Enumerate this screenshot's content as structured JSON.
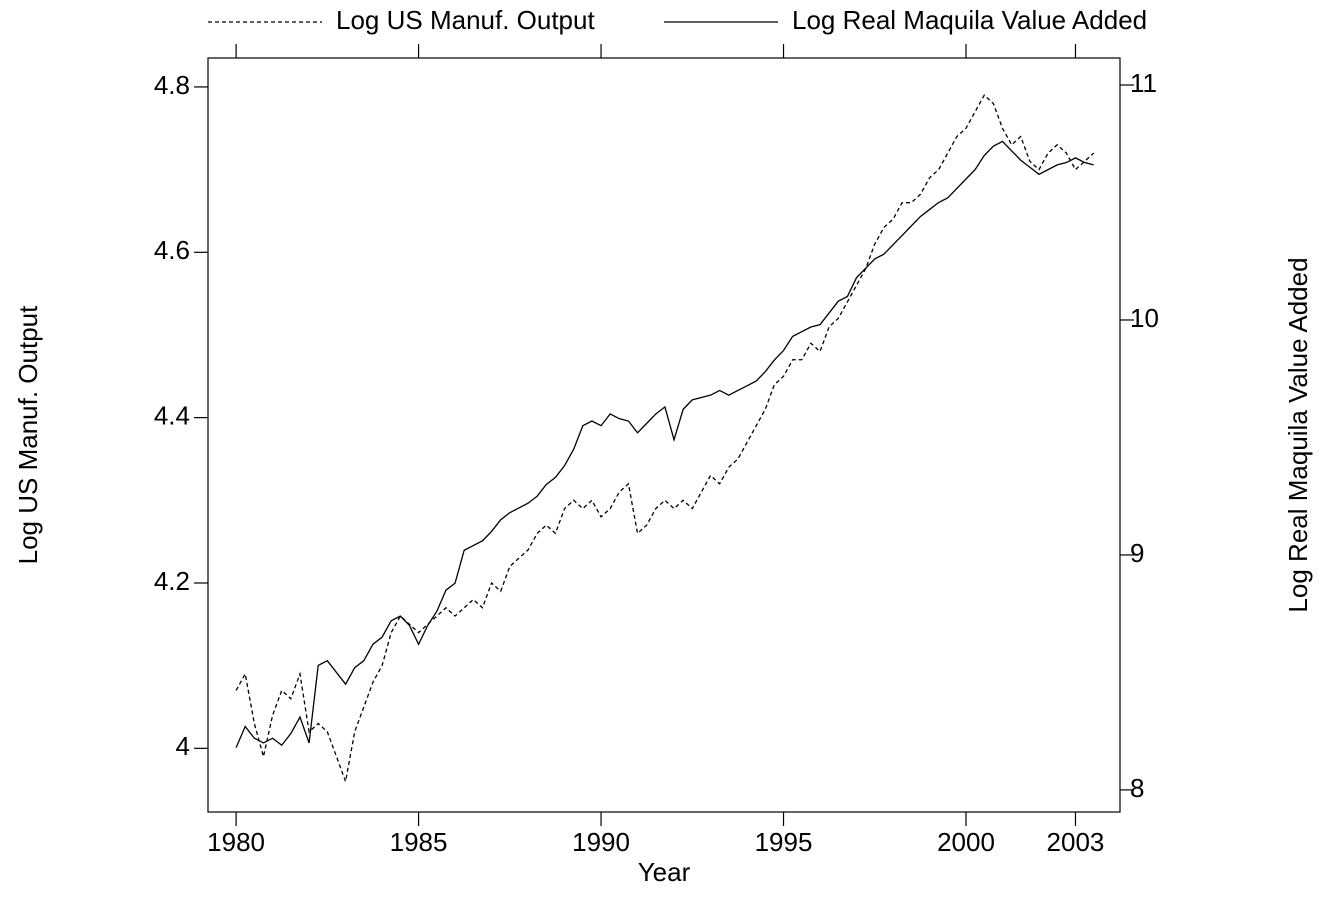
{
  "chart_data": {
    "type": "line",
    "x_label": "Year",
    "y_label": "Log US Manuf. Output",
    "y2_label": "Log Real Maquila Value Added",
    "x": [
      1980,
      1980.25,
      1980.5,
      1980.75,
      1981,
      1981.25,
      1981.5,
      1981.75,
      1982,
      1982.25,
      1982.5,
      1982.75,
      1983,
      1983.25,
      1983.5,
      1983.75,
      1984,
      1984.25,
      1984.5,
      1984.75,
      1985,
      1985.25,
      1985.5,
      1985.75,
      1986,
      1986.25,
      1986.5,
      1986.75,
      1987,
      1987.25,
      1987.5,
      1987.75,
      1988,
      1988.25,
      1988.5,
      1988.75,
      1989,
      1989.25,
      1989.5,
      1989.75,
      1990,
      1990.25,
      1990.5,
      1990.75,
      1991,
      1991.25,
      1991.5,
      1991.75,
      1992,
      1992.25,
      1992.5,
      1992.75,
      1993,
      1993.25,
      1993.5,
      1993.75,
      1994,
      1994.25,
      1994.5,
      1994.75,
      1995,
      1995.25,
      1995.5,
      1995.75,
      1996,
      1996.25,
      1996.5,
      1996.75,
      1997,
      1997.25,
      1997.5,
      1997.75,
      1998,
      1998.25,
      1998.5,
      1998.75,
      1999,
      1999.25,
      1999.5,
      1999.75,
      2000,
      2000.25,
      2000.5,
      2000.75,
      2001,
      2001.25,
      2001.5,
      2001.75,
      2002,
      2002.25,
      2002.5,
      2002.75,
      2003,
      2003.25,
      2003.5
    ],
    "series": [
      {
        "name": "Log US Manuf. Output",
        "color": "#000000",
        "line_style": "dashed",
        "values": [
          4.07,
          4.09,
          4.03,
          3.99,
          4.04,
          4.07,
          4.06,
          4.09,
          4.02,
          4.03,
          4.02,
          3.99,
          3.96,
          4.02,
          4.05,
          4.08,
          4.1,
          4.14,
          4.16,
          4.15,
          4.14,
          4.15,
          4.16,
          4.17,
          4.16,
          4.17,
          4.18,
          4.17,
          4.2,
          4.19,
          4.22,
          4.23,
          4.24,
          4.26,
          4.27,
          4.26,
          4.29,
          4.3,
          4.29,
          4.3,
          4.28,
          4.29,
          4.31,
          4.32,
          4.26,
          4.27,
          4.29,
          4.3,
          4.29,
          4.3,
          4.29,
          4.31,
          4.33,
          4.32,
          4.34,
          4.35,
          4.37,
          4.39,
          4.41,
          4.44,
          4.45,
          4.47,
          4.47,
          4.49,
          4.48,
          4.51,
          4.52,
          4.54,
          4.56,
          4.58,
          4.61,
          4.63,
          4.64,
          4.66,
          4.66,
          4.67,
          4.69,
          4.7,
          4.72,
          4.74,
          4.75,
          4.77,
          4.79,
          4.78,
          4.75,
          4.73,
          4.74,
          4.71,
          4.7,
          4.72,
          4.73,
          4.72,
          4.7,
          4.71,
          4.72
        ]
      },
      {
        "name": "Log Real Maquila Value Added",
        "color": "#000000",
        "line_style": "solid",
        "axis": "y2",
        "values": [
          8.18,
          8.27,
          8.22,
          8.2,
          8.22,
          8.19,
          8.24,
          8.31,
          8.2,
          8.53,
          8.55,
          8.5,
          8.45,
          8.52,
          8.55,
          8.62,
          8.65,
          8.72,
          8.74,
          8.7,
          8.62,
          8.7,
          8.76,
          8.85,
          8.88,
          9.02,
          9.04,
          9.06,
          9.1,
          9.15,
          9.18,
          9.2,
          9.22,
          9.25,
          9.3,
          9.33,
          9.38,
          9.45,
          9.55,
          9.57,
          9.55,
          9.6,
          9.58,
          9.57,
          9.52,
          9.56,
          9.6,
          9.63,
          9.49,
          9.62,
          9.66,
          9.67,
          9.68,
          9.7,
          9.68,
          9.7,
          9.72,
          9.74,
          9.78,
          9.83,
          9.87,
          9.93,
          9.95,
          9.97,
          9.98,
          10.03,
          10.08,
          10.1,
          10.18,
          10.22,
          10.26,
          10.28,
          10.32,
          10.36,
          10.4,
          10.44,
          10.47,
          10.5,
          10.52,
          10.56,
          10.6,
          10.64,
          10.7,
          10.74,
          10.76,
          10.72,
          10.68,
          10.65,
          10.62,
          10.64,
          10.66,
          10.67,
          10.69,
          10.67,
          10.66
        ]
      }
    ],
    "xlim": [
      1979.23,
      2004.22
    ],
    "xticks": [
      1980,
      1985,
      1990,
      1995,
      2000,
      2003
    ],
    "ylim": [
      3.923,
      4.835
    ],
    "yticks": [
      4,
      4.2,
      4.4,
      4.6,
      4.8
    ],
    "y2lim": [
      7.906,
      11.115
    ],
    "y2ticks": [
      8,
      9,
      10,
      11
    ],
    "legend": "top",
    "grid": false
  }
}
